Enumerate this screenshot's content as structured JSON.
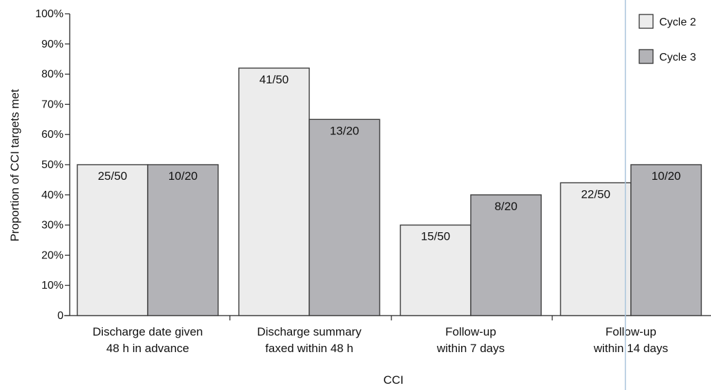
{
  "chart_data": {
    "type": "bar",
    "title": "",
    "xlabel": "CCI",
    "ylabel": "Proportion of CCI targets met",
    "ylim": [
      0,
      100
    ],
    "yticks": [
      "0",
      "10%",
      "20%",
      "30%",
      "40%",
      "50%",
      "60%",
      "70%",
      "80%",
      "90%",
      "100%"
    ],
    "categories": [
      [
        "Discharge date given",
        "48 h in advance"
      ],
      [
        "Discharge summary",
        "faxed within 48 h"
      ],
      [
        "Follow-up",
        "within 7 days"
      ],
      [
        "Follow-up",
        "within 14 days"
      ]
    ],
    "series": [
      {
        "name": "Cycle 2",
        "color": "#ececec",
        "values": [
          50,
          82,
          30,
          44
        ],
        "labels": [
          "25/50",
          "41/50",
          "15/50",
          "22/50"
        ]
      },
      {
        "name": "Cycle 3",
        "color": "#b3b3b7",
        "values": [
          50,
          65,
          40,
          50
        ],
        "labels": [
          "10/20",
          "13/20",
          "8/20",
          "10/20"
        ]
      }
    ],
    "grid": false,
    "legend_position": "top-right"
  }
}
